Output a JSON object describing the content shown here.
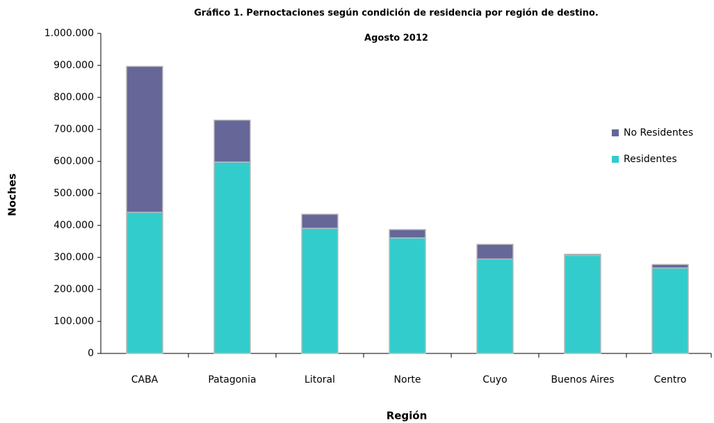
{
  "chart_data": {
    "type": "stacked_bar",
    "title": "Gráfico 1. Pernoctaciones según condición de residencia por región de destino.",
    "subtitle": "Agosto 2012",
    "x_label": "Región",
    "y_label": "Noches",
    "categories": [
      "CABA",
      "Patagonia",
      "Litoral",
      "Norte",
      "Cuyo",
      "Buenos Aires",
      "Centro"
    ],
    "series": [
      {
        "name": "Residentes",
        "color": "#33cccc",
        "values": [
          441000,
          598000,
          391000,
          361000,
          295000,
          306000,
          267000
        ]
      },
      {
        "name": "No Residentes",
        "color": "#666699",
        "values": [
          456000,
          131000,
          44000,
          26000,
          46000,
          4000,
          11000
        ]
      }
    ],
    "ylim": [
      0,
      1000000
    ],
    "yticks": [
      0,
      {
        "value": 100000,
        "label": "100.000"
      },
      {
        "value": 200000,
        "label": "200.000"
      },
      {
        "value": 300000,
        "label": "300.000"
      },
      {
        "value": 400000,
        "label": "400.000"
      },
      {
        "value": 500000,
        "label": "500.000"
      },
      {
        "value": 600000,
        "label": "600.000"
      },
      {
        "value": 700000,
        "label": "700.000"
      },
      {
        "value": 800000,
        "label": "800.000"
      },
      {
        "value": 900000,
        "label": "900.000"
      },
      {
        "value": 1000000,
        "label": "1.000.000"
      }
    ],
    "grid": false,
    "legend": "right"
  }
}
